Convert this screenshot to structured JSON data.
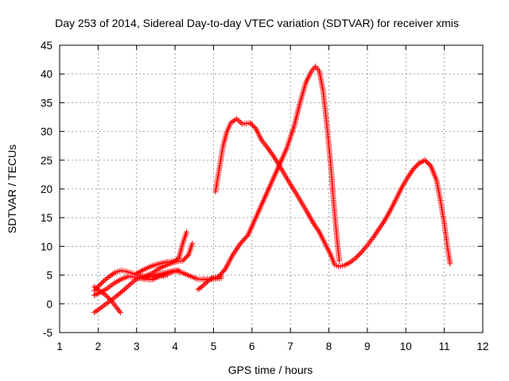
{
  "chart_data": {
    "type": "scatter",
    "title": "Day 253 of 2014, Sidereal Day-to-day VTEC variation (SDTVAR) for receiver xmis",
    "xlabel": "GPS time / hours",
    "ylabel": "SDTVAR / TECUs",
    "xlim": [
      1,
      12
    ],
    "ylim": [
      -5,
      45
    ],
    "xticks": [
      1,
      2,
      3,
      4,
      5,
      6,
      7,
      8,
      9,
      10,
      11,
      12
    ],
    "yticks": [
      -5,
      0,
      5,
      10,
      15,
      20,
      25,
      30,
      35,
      40,
      45
    ],
    "grid": true,
    "marker": "+",
    "color": "#ff0000",
    "series": [
      {
        "points": [
          [
            1.9,
            2.3
          ],
          [
            2.0,
            3.0
          ],
          [
            2.15,
            4.0
          ],
          [
            2.3,
            4.8
          ],
          [
            2.45,
            5.5
          ],
          [
            2.6,
            5.8
          ],
          [
            2.75,
            5.6
          ],
          [
            2.9,
            5.3
          ],
          [
            3.0,
            5.0
          ],
          [
            3.2,
            4.8
          ],
          [
            3.4,
            4.7
          ],
          [
            3.6,
            4.8
          ],
          [
            3.8,
            5.0
          ]
        ]
      },
      {
        "points": [
          [
            1.9,
            1.5
          ],
          [
            2.05,
            2.0
          ],
          [
            2.2,
            2.5
          ],
          [
            2.4,
            3.5
          ],
          [
            2.6,
            4.3
          ],
          [
            2.8,
            4.8
          ],
          [
            3.0,
            4.6
          ],
          [
            3.2,
            4.3
          ],
          [
            3.4,
            4.2
          ],
          [
            3.6,
            4.8
          ],
          [
            3.8,
            5.3
          ],
          [
            4.0,
            5.7
          ],
          [
            4.1,
            5.9
          ]
        ]
      },
      {
        "points": [
          [
            1.9,
            -1.5
          ],
          [
            2.05,
            -0.8
          ],
          [
            2.25,
            0.2
          ],
          [
            2.45,
            1.2
          ],
          [
            2.65,
            2.3
          ],
          [
            2.85,
            3.5
          ],
          [
            3.0,
            4.3
          ],
          [
            3.2,
            4.8
          ],
          [
            3.4,
            5.3
          ],
          [
            3.6,
            6.2
          ],
          [
            3.8,
            6.8
          ],
          [
            4.0,
            7.3
          ],
          [
            4.2,
            7.5
          ],
          [
            4.35,
            8.5
          ],
          [
            4.45,
            10.5
          ]
        ]
      },
      {
        "points": [
          [
            1.9,
            3.0
          ],
          [
            2.05,
            2.2
          ],
          [
            2.2,
            1.5
          ],
          [
            2.35,
            0.5
          ],
          [
            2.5,
            -0.8
          ],
          [
            2.58,
            -1.5
          ]
        ]
      },
      {
        "points": [
          [
            3.0,
            5.3
          ],
          [
            3.2,
            6.0
          ],
          [
            3.4,
            6.6
          ],
          [
            3.6,
            7.0
          ],
          [
            3.8,
            7.3
          ],
          [
            4.0,
            7.5
          ],
          [
            4.1,
            8.0
          ],
          [
            4.2,
            10.5
          ],
          [
            4.3,
            12.5
          ]
        ]
      },
      {
        "points": [
          [
            3.2,
            4.5
          ],
          [
            3.4,
            4.8
          ],
          [
            3.6,
            5.2
          ],
          [
            3.8,
            5.5
          ],
          [
            4.0,
            5.8
          ],
          [
            4.2,
            5.4
          ],
          [
            4.4,
            4.8
          ],
          [
            4.6,
            4.3
          ],
          [
            4.8,
            4.2
          ],
          [
            5.0,
            4.3
          ],
          [
            5.2,
            4.5
          ]
        ]
      },
      {
        "points": [
          [
            4.6,
            2.5
          ],
          [
            4.7,
            3.0
          ],
          [
            4.8,
            3.6
          ],
          [
            4.9,
            4.2
          ],
          [
            5.0,
            4.6
          ],
          [
            5.1,
            4.7
          ],
          [
            5.2,
            4.8
          ]
        ]
      },
      {
        "points": [
          [
            5.05,
            19.5
          ],
          [
            5.15,
            23.5
          ],
          [
            5.25,
            27.5
          ],
          [
            5.35,
            30.0
          ],
          [
            5.45,
            31.5
          ],
          [
            5.6,
            32.2
          ],
          [
            5.75,
            31.3
          ],
          [
            5.95,
            31.5
          ],
          [
            6.1,
            30.5
          ],
          [
            6.25,
            28.5
          ],
          [
            6.4,
            27.2
          ],
          [
            6.55,
            25.8
          ],
          [
            6.7,
            24.2
          ],
          [
            6.85,
            22.5
          ],
          [
            7.0,
            20.8
          ],
          [
            7.15,
            19.2
          ],
          [
            7.3,
            17.5
          ],
          [
            7.45,
            15.8
          ],
          [
            7.6,
            14.0
          ],
          [
            7.75,
            12.5
          ],
          [
            7.9,
            10.5
          ],
          [
            8.05,
            8.5
          ],
          [
            8.15,
            6.8
          ],
          [
            8.25,
            6.5
          ],
          [
            8.4,
            6.7
          ],
          [
            8.55,
            7.2
          ],
          [
            8.7,
            8.0
          ],
          [
            8.85,
            9.0
          ],
          [
            9.0,
            10.2
          ],
          [
            9.15,
            11.5
          ],
          [
            9.3,
            13.0
          ],
          [
            9.45,
            14.5
          ],
          [
            9.6,
            16.3
          ],
          [
            9.75,
            18.3
          ],
          [
            9.9,
            20.3
          ],
          [
            10.05,
            22.0
          ],
          [
            10.2,
            23.5
          ],
          [
            10.35,
            24.5
          ],
          [
            10.5,
            25.0
          ],
          [
            10.65,
            24.0
          ],
          [
            10.8,
            21.5
          ],
          [
            10.9,
            18.0
          ],
          [
            11.0,
            14.0
          ],
          [
            11.08,
            10.0
          ],
          [
            11.15,
            7.0
          ]
        ]
      },
      {
        "points": [
          [
            4.7,
            4.3
          ],
          [
            4.9,
            4.3
          ],
          [
            5.1,
            4.5
          ],
          [
            5.3,
            6.0
          ],
          [
            5.5,
            8.5
          ],
          [
            5.7,
            10.5
          ],
          [
            5.9,
            12.0
          ],
          [
            6.1,
            15.0
          ],
          [
            6.3,
            18.0
          ],
          [
            6.5,
            21.0
          ],
          [
            6.7,
            24.0
          ],
          [
            6.9,
            27.0
          ],
          [
            7.1,
            31.0
          ],
          [
            7.25,
            35.0
          ],
          [
            7.4,
            38.5
          ],
          [
            7.55,
            40.5
          ],
          [
            7.65,
            41.3
          ],
          [
            7.75,
            40.5
          ],
          [
            7.85,
            37.0
          ],
          [
            7.95,
            31.0
          ],
          [
            8.05,
            24.0
          ],
          [
            8.12,
            18.0
          ],
          [
            8.2,
            12.0
          ],
          [
            8.27,
            7.5
          ]
        ]
      }
    ]
  }
}
